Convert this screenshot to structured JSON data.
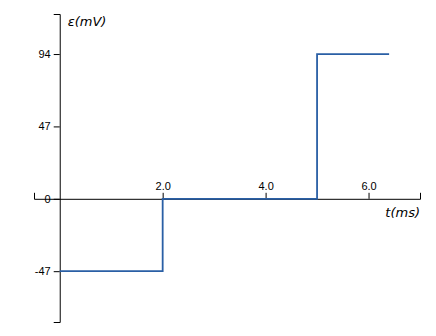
{
  "chart_data": {
    "type": "line",
    "xlabel": "t(ms)",
    "ylabel": "ε(mV)",
    "x": [
      0,
      2,
      2,
      5,
      5,
      6.4
    ],
    "values": [
      -47,
      -47,
      0,
      0,
      94,
      94
    ],
    "color": "#2a5fa5",
    "xlim": [
      -0.5,
      7.0
    ],
    "ylim": [
      -80,
      120
    ],
    "xticks": [
      {
        "value": 2.0,
        "label": "2.0"
      },
      {
        "value": 4.0,
        "label": "4.0"
      },
      {
        "value": 6.0,
        "label": "6.0"
      }
    ],
    "yticks": [
      -47,
      0,
      47,
      94
    ]
  }
}
